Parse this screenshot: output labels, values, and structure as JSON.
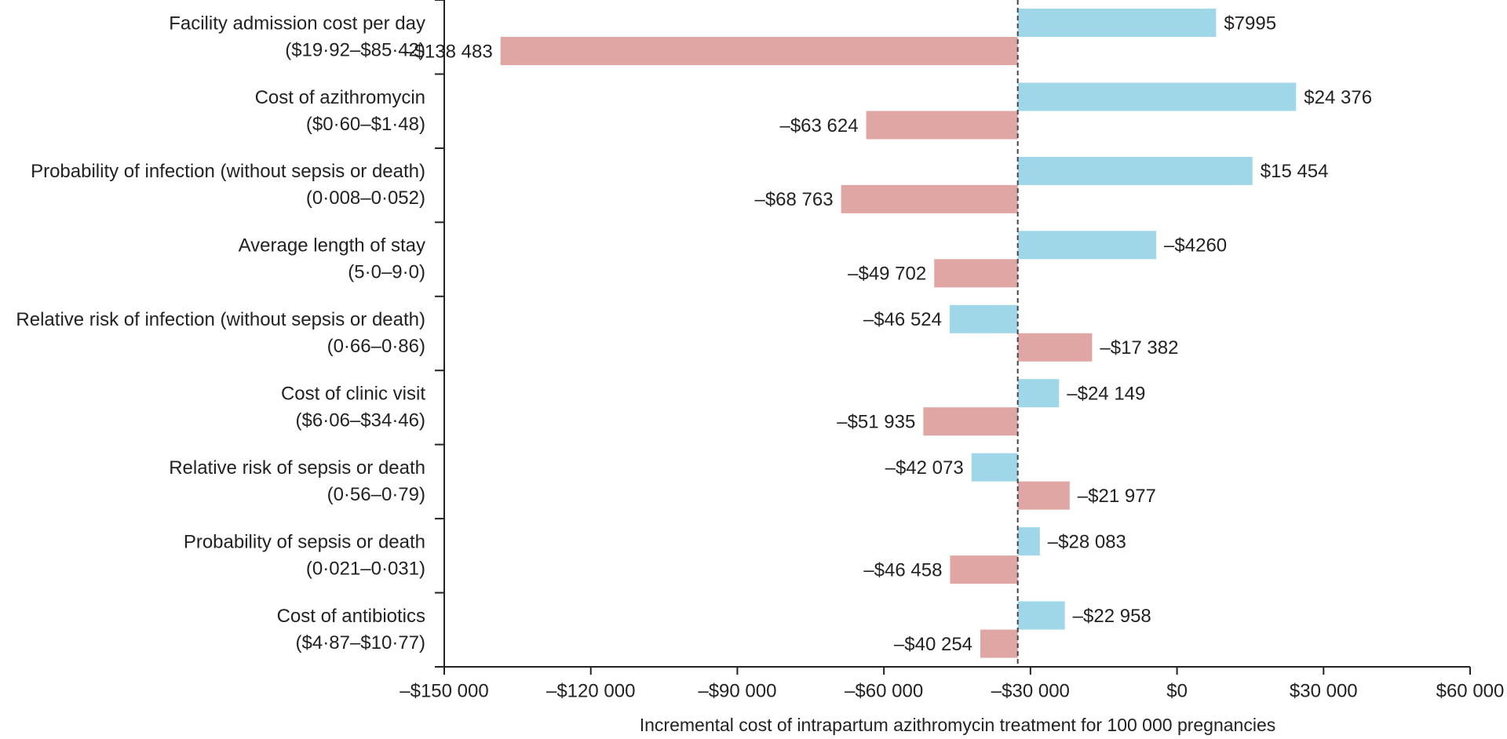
{
  "chart_data": {
    "type": "tornado",
    "x_label": "Incremental cost of intrapartum azithromycin treatment for 100 000 pregnancies",
    "categories": [
      "Facility admission cost per day",
      "Cost of azithromycin",
      "Probability of infection (without sepsis or death)",
      "Average length of stay",
      "Relative risk of infection (without sepsis or death)",
      "Cost of clinic visit",
      "Relative risk of sepsis or death",
      "Probability of sepsis or death",
      "Cost of antibiotics"
    ],
    "ranges": [
      "($19·92–$85·42)",
      "($0·60–$1·48)",
      "(0·008–0·052)",
      "(5·0–9·0)",
      "(0·66–0·86)",
      "($6·06–$34·46)",
      "(0·56–0·79)",
      "(0·021–0·031)",
      "($4·87–$10·77)"
    ],
    "baseline": -32600,
    "series": [
      {
        "color": "#9fd7e8",
        "values": [
          7995,
          24376,
          15454,
          -4260,
          -46524,
          -24149,
          -42073,
          -28083,
          -22958
        ],
        "value_labels": [
          "$7995",
          "$24 376",
          "$15 454",
          "–$4260",
          "–$46 524",
          "–$24 149",
          "–$42 073",
          "–$28 083",
          "–$22 958"
        ]
      },
      {
        "color": "#e0a6a3",
        "values": [
          -138483,
          -63624,
          -68763,
          -49702,
          -17382,
          -51935,
          -21977,
          -46458,
          -40254
        ],
        "value_labels": [
          "–$138 483",
          "–$63 624",
          "–$68 763",
          "–$49 702",
          "–$17 382",
          "–$51 935",
          "–$21 977",
          "–$46 458",
          "–$40 254"
        ]
      }
    ],
    "xlim": [
      -150000,
      60000
    ],
    "xticks": [
      {
        "value": -150000,
        "label": "–$150 000"
      },
      {
        "value": -120000,
        "label": "–$120 000"
      },
      {
        "value": -90000,
        "label": "–$90 000"
      },
      {
        "value": -60000,
        "label": "–$60 000"
      },
      {
        "value": -30000,
        "label": "–$30 000"
      },
      {
        "value": 0,
        "label": "$0"
      },
      {
        "value": 30000,
        "label": "$30 000"
      },
      {
        "value": 60000,
        "label": "$60 000"
      }
    ]
  }
}
